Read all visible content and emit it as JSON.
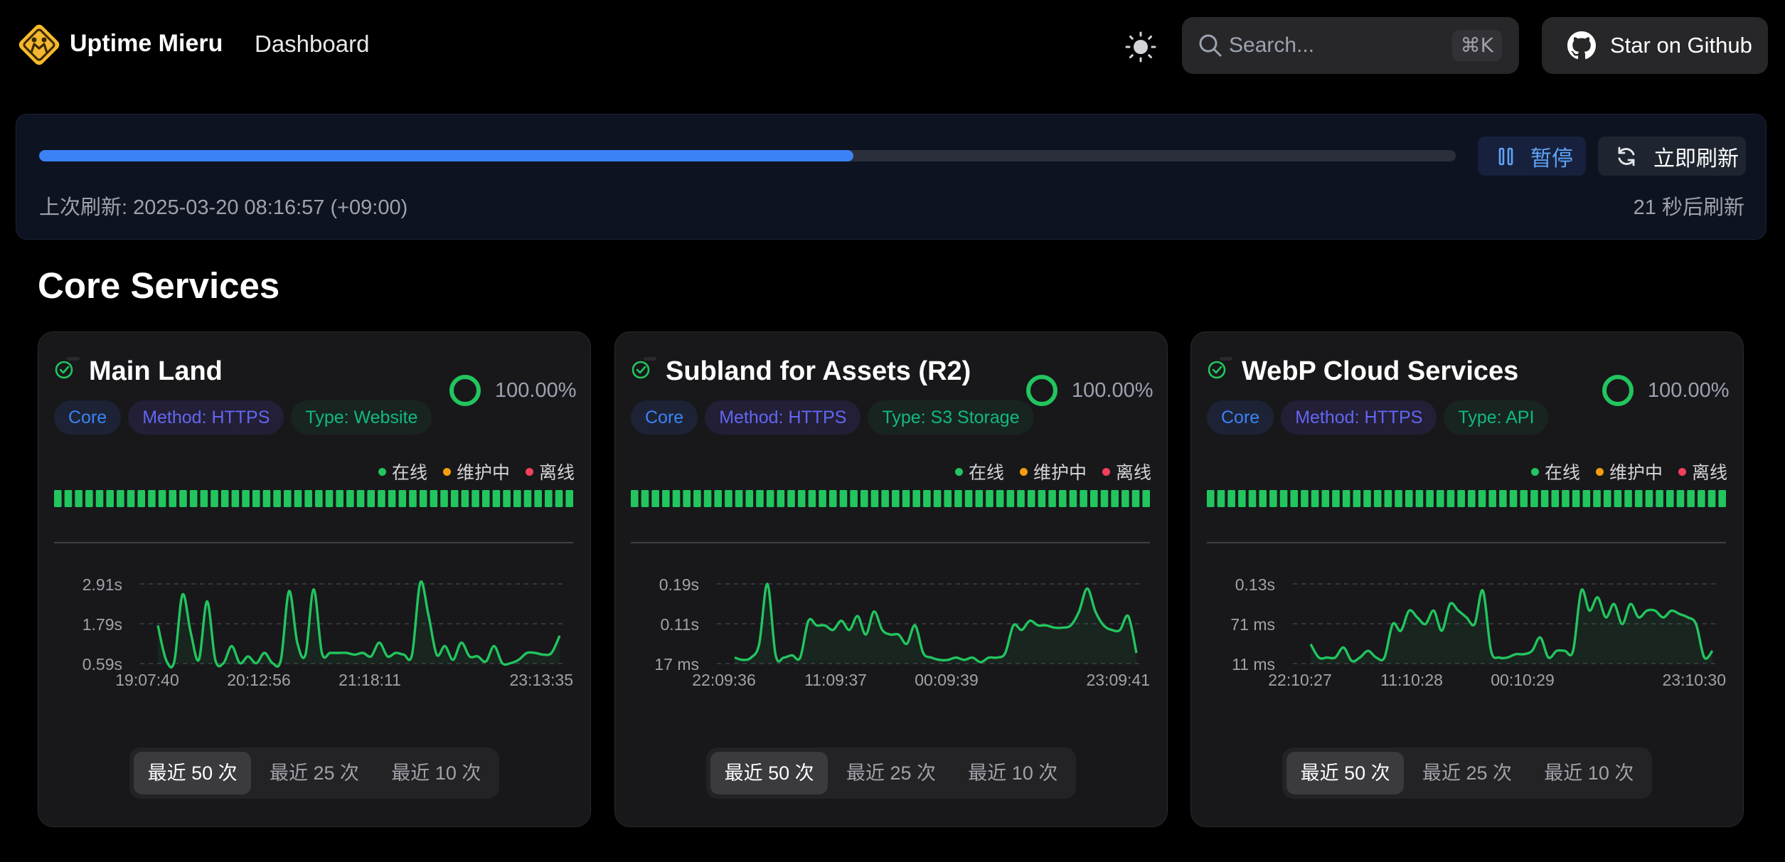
{
  "header": {
    "brand": "Uptime Mieru",
    "nav": "Dashboard",
    "search_placeholder": "Search...",
    "search_shortcut": "⌘K",
    "github_label": "Star on Github"
  },
  "refresh": {
    "progress_fraction": 0.575,
    "pause_label": "暂停",
    "refresh_now_label": "立即刷新",
    "last_refresh": "上次刷新: 2025-03-20 08:16:57 (+09:00)",
    "next_refresh": "21 秒后刷新"
  },
  "section_title": "Core Services",
  "legend": {
    "online": "在线",
    "maintenance": "维护中",
    "offline": "离线"
  },
  "colors": {
    "online": "#22c55e",
    "maintenance": "#f59e0b",
    "offline": "#f43f5e",
    "accent": "#3b82f6"
  },
  "range_options": [
    "最近 50 次",
    "最近 25 次",
    "最近 10 次"
  ],
  "cards": [
    {
      "title": "Main Land",
      "uptime": "100.00%",
      "tags": [
        "Core",
        "Method: HTTPS",
        "Type: Website"
      ],
      "heartbeats": 50,
      "y_ticks": [
        "2.91s",
        "1.79s",
        "0.59s"
      ],
      "x_ticks": [
        "19:07:40",
        "20:12:56",
        "21:18:11",
        "23:13:35"
      ]
    },
    {
      "title": "Subland for Assets (R2)",
      "uptime": "100.00%",
      "tags": [
        "Core",
        "Method: HTTPS",
        "Type: S3 Storage"
      ],
      "heartbeats": 50,
      "y_ticks": [
        "0.19s",
        "0.11s",
        "17 ms"
      ],
      "x_ticks": [
        "22:09:36",
        "11:09:37",
        "00:09:39",
        "23:09:41"
      ]
    },
    {
      "title": "WebP Cloud Services",
      "uptime": "100.00%",
      "tags": [
        "Core",
        "Method: HTTPS",
        "Type: API"
      ],
      "heartbeats": 50,
      "y_ticks": [
        "0.13s",
        "71 ms",
        "11 ms"
      ],
      "x_ticks": [
        "22:10:27",
        "11:10:28",
        "00:10:29",
        "23:10:30"
      ]
    }
  ],
  "chart_data": [
    {
      "type": "line",
      "ylabel": "",
      "y_min": 0.59,
      "y_max": 2.91,
      "values": [
        1.7,
        0.7,
        0.65,
        2.6,
        1.5,
        0.7,
        2.4,
        0.7,
        0.6,
        1.1,
        0.6,
        0.8,
        0.6,
        0.9,
        0.6,
        0.7,
        2.7,
        1.2,
        0.85,
        2.75,
        0.9,
        0.9,
        0.9,
        0.9,
        0.85,
        0.9,
        0.8,
        1.2,
        0.8,
        0.9,
        0.85,
        0.85,
        2.95,
        2.0,
        0.85,
        1.1,
        0.7,
        1.2,
        0.8,
        0.8,
        0.65,
        1.1,
        0.6,
        0.6,
        0.7,
        0.9,
        0.9,
        0.85,
        0.9,
        1.4
      ]
    },
    {
      "type": "line",
      "ylabel": "",
      "y_min": 0.017,
      "y_max": 0.19,
      "values": [
        0.03,
        0.025,
        0.03,
        0.06,
        0.19,
        0.035,
        0.03,
        0.035,
        0.03,
        0.11,
        0.1,
        0.1,
        0.09,
        0.11,
        0.09,
        0.12,
        0.08,
        0.13,
        0.09,
        0.08,
        0.08,
        0.06,
        0.1,
        0.04,
        0.03,
        0.025,
        0.025,
        0.03,
        0.025,
        0.03,
        0.02,
        0.03,
        0.03,
        0.04,
        0.1,
        0.09,
        0.11,
        0.1,
        0.1,
        0.095,
        0.095,
        0.1,
        0.13,
        0.18,
        0.13,
        0.1,
        0.09,
        0.09,
        0.12,
        0.04
      ]
    },
    {
      "type": "line",
      "ylabel": "",
      "y_min": 0.011,
      "y_max": 0.13,
      "values": [
        0.04,
        0.02,
        0.02,
        0.02,
        0.035,
        0.015,
        0.02,
        0.03,
        0.02,
        0.02,
        0.07,
        0.06,
        0.09,
        0.08,
        0.07,
        0.09,
        0.06,
        0.1,
        0.09,
        0.08,
        0.07,
        0.12,
        0.03,
        0.02,
        0.02,
        0.025,
        0.025,
        0.03,
        0.05,
        0.02,
        0.03,
        0.03,
        0.03,
        0.12,
        0.09,
        0.11,
        0.08,
        0.1,
        0.07,
        0.1,
        0.08,
        0.09,
        0.09,
        0.08,
        0.09,
        0.085,
        0.08,
        0.07,
        0.02,
        0.03
      ]
    }
  ]
}
